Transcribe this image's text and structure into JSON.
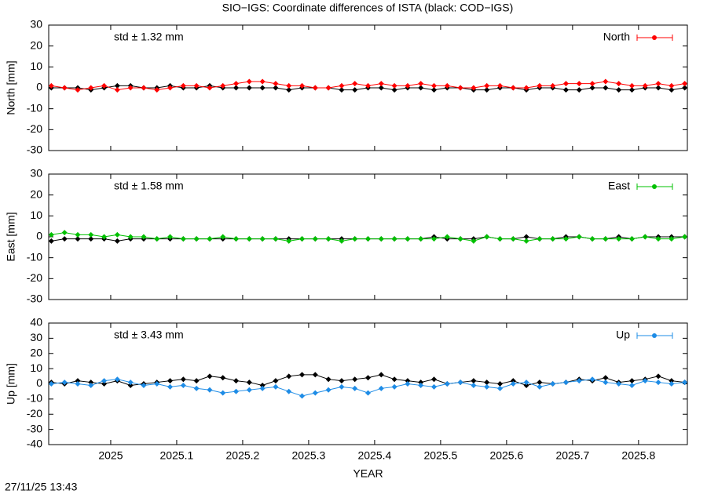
{
  "title": "SIO−IGS: Coordinate differences of ISTA (black: COD−IGS)",
  "timestamp": "27/11/25 13:43",
  "chart_data": [
    {
      "type": "line",
      "ylabel": "North [mm]",
      "annotation": "std ± 1.32 mm",
      "x": [
        2024.91,
        2024.93,
        2024.95,
        2024.97,
        2024.99,
        2025.01,
        2025.03,
        2025.05,
        2025.07,
        2025.09,
        2025.11,
        2025.13,
        2025.15,
        2025.17,
        2025.19,
        2025.21,
        2025.23,
        2025.25,
        2025.27,
        2025.29,
        2025.31,
        2025.33,
        2025.35,
        2025.37,
        2025.39,
        2025.41,
        2025.43,
        2025.45,
        2025.47,
        2025.49,
        2025.51,
        2025.53,
        2025.55,
        2025.57,
        2025.59,
        2025.61,
        2025.63,
        2025.65,
        2025.67,
        2025.69,
        2025.71,
        2025.73,
        2025.75,
        2025.77,
        2025.79,
        2025.81,
        2025.83,
        2025.85,
        2025.87
      ],
      "series": [
        {
          "color": "#000000",
          "values": [
            0,
            0,
            0,
            -1,
            0,
            1,
            1,
            0,
            0,
            1,
            0,
            0,
            1,
            0,
            0,
            0,
            0,
            0,
            -1,
            0,
            0,
            0,
            -1,
            -1,
            0,
            0,
            -1,
            0,
            0,
            -1,
            0,
            0,
            -1,
            -1,
            0,
            0,
            -1,
            0,
            0,
            -1,
            -1,
            0,
            0,
            -1,
            -1,
            0,
            0,
            -1,
            0
          ]
        },
        {
          "name": "North",
          "color": "#ff0000",
          "values": [
            1,
            0,
            -1,
            0,
            1,
            -1,
            0,
            0,
            -1,
            0,
            1,
            1,
            0,
            1,
            2,
            3,
            3,
            2,
            1,
            1,
            0,
            0,
            1,
            2,
            1,
            2,
            1,
            1,
            2,
            1,
            1,
            0,
            0,
            1,
            1,
            0,
            0,
            1,
            1,
            2,
            2,
            2,
            3,
            2,
            1,
            1,
            2,
            1,
            2
          ]
        }
      ],
      "xlim": [
        2024.906,
        2025.874
      ],
      "ylim": [
        -30,
        30
      ],
      "yticks": [
        -30,
        -20,
        -10,
        0,
        10,
        20,
        30
      ]
    },
    {
      "type": "line",
      "ylabel": "East [mm]",
      "annotation": "std ± 1.58 mm",
      "x": [
        2024.91,
        2024.93,
        2024.95,
        2024.97,
        2024.99,
        2025.01,
        2025.03,
        2025.05,
        2025.07,
        2025.09,
        2025.11,
        2025.13,
        2025.15,
        2025.17,
        2025.19,
        2025.21,
        2025.23,
        2025.25,
        2025.27,
        2025.29,
        2025.31,
        2025.33,
        2025.35,
        2025.37,
        2025.39,
        2025.41,
        2025.43,
        2025.45,
        2025.47,
        2025.49,
        2025.51,
        2025.53,
        2025.55,
        2025.57,
        2025.59,
        2025.61,
        2025.63,
        2025.65,
        2025.67,
        2025.69,
        2025.71,
        2025.73,
        2025.75,
        2025.77,
        2025.79,
        2025.81,
        2025.83,
        2025.85,
        2025.87
      ],
      "series": [
        {
          "color": "#000000",
          "values": [
            -2,
            -1,
            -1,
            -1,
            -1,
            -2,
            -1,
            -1,
            -1,
            -1,
            -1,
            -1,
            -1,
            -1,
            -1,
            -1,
            -1,
            -1,
            -1,
            -1,
            -1,
            -1,
            -1,
            -1,
            -1,
            -1,
            -1,
            -1,
            -1,
            0,
            -1,
            -1,
            -1,
            0,
            -1,
            -1,
            0,
            -1,
            -1,
            0,
            0,
            -1,
            -1,
            0,
            -1,
            0,
            0,
            0,
            0
          ]
        },
        {
          "name": "East",
          "color": "#00c000",
          "values": [
            1,
            2,
            1,
            1,
            0,
            1,
            0,
            0,
            -1,
            0,
            -1,
            -1,
            -1,
            0,
            -1,
            -1,
            -1,
            -1,
            -2,
            -1,
            -1,
            -1,
            -2,
            -1,
            -1,
            -1,
            -1,
            -1,
            -1,
            -1,
            0,
            -1,
            -2,
            0,
            -1,
            -1,
            -2,
            -1,
            -1,
            -1,
            0,
            -1,
            -1,
            -1,
            -1,
            0,
            -1,
            -1,
            0
          ]
        }
      ],
      "xlim": [
        2024.906,
        2025.874
      ],
      "ylim": [
        -30,
        30
      ],
      "yticks": [
        -30,
        -20,
        -10,
        0,
        10,
        20,
        30
      ]
    },
    {
      "type": "line",
      "ylabel": "Up [mm]",
      "xlabel": "YEAR",
      "annotation": "std ± 3.43 mm",
      "x": [
        2024.91,
        2024.93,
        2024.95,
        2024.97,
        2024.99,
        2025.01,
        2025.03,
        2025.05,
        2025.07,
        2025.09,
        2025.11,
        2025.13,
        2025.15,
        2025.17,
        2025.19,
        2025.21,
        2025.23,
        2025.25,
        2025.27,
        2025.29,
        2025.31,
        2025.33,
        2025.35,
        2025.37,
        2025.39,
        2025.41,
        2025.43,
        2025.45,
        2025.47,
        2025.49,
        2025.51,
        2025.53,
        2025.55,
        2025.57,
        2025.59,
        2025.61,
        2025.63,
        2025.65,
        2025.67,
        2025.69,
        2025.71,
        2025.73,
        2025.75,
        2025.77,
        2025.79,
        2025.81,
        2025.83,
        2025.85,
        2025.87
      ],
      "series": [
        {
          "color": "#000000",
          "values": [
            1,
            0,
            2,
            1,
            0,
            2,
            -1,
            0,
            1,
            2,
            3,
            2,
            5,
            4,
            2,
            1,
            -1,
            2,
            5,
            6,
            6,
            3,
            2,
            3,
            4,
            6,
            3,
            2,
            1,
            3,
            0,
            1,
            2,
            1,
            0,
            2,
            -1,
            1,
            0,
            1,
            3,
            2,
            4,
            1,
            2,
            3,
            5,
            2,
            1
          ]
        },
        {
          "name": "Up",
          "color": "#1e8ce6",
          "values": [
            0,
            1,
            0,
            -1,
            2,
            3,
            1,
            -1,
            0,
            -2,
            -1,
            -3,
            -4,
            -6,
            -5,
            -4,
            -3,
            -2,
            -5,
            -8,
            -6,
            -4,
            -2,
            -3,
            -6,
            -3,
            -2,
            0,
            -1,
            -2,
            0,
            1,
            -1,
            -2,
            -3,
            0,
            1,
            -2,
            0,
            1,
            2,
            3,
            1,
            0,
            -1,
            2,
            1,
            0,
            1
          ]
        }
      ],
      "xlim": [
        2024.906,
        2025.874
      ],
      "xticks": [
        2025,
        2025.1,
        2025.2,
        2025.3,
        2025.4,
        2025.5,
        2025.6,
        2025.7,
        2025.8
      ],
      "ylim": [
        -40,
        40
      ],
      "yticks": [
        -40,
        -30,
        -20,
        -10,
        0,
        10,
        20,
        30,
        40
      ]
    }
  ]
}
